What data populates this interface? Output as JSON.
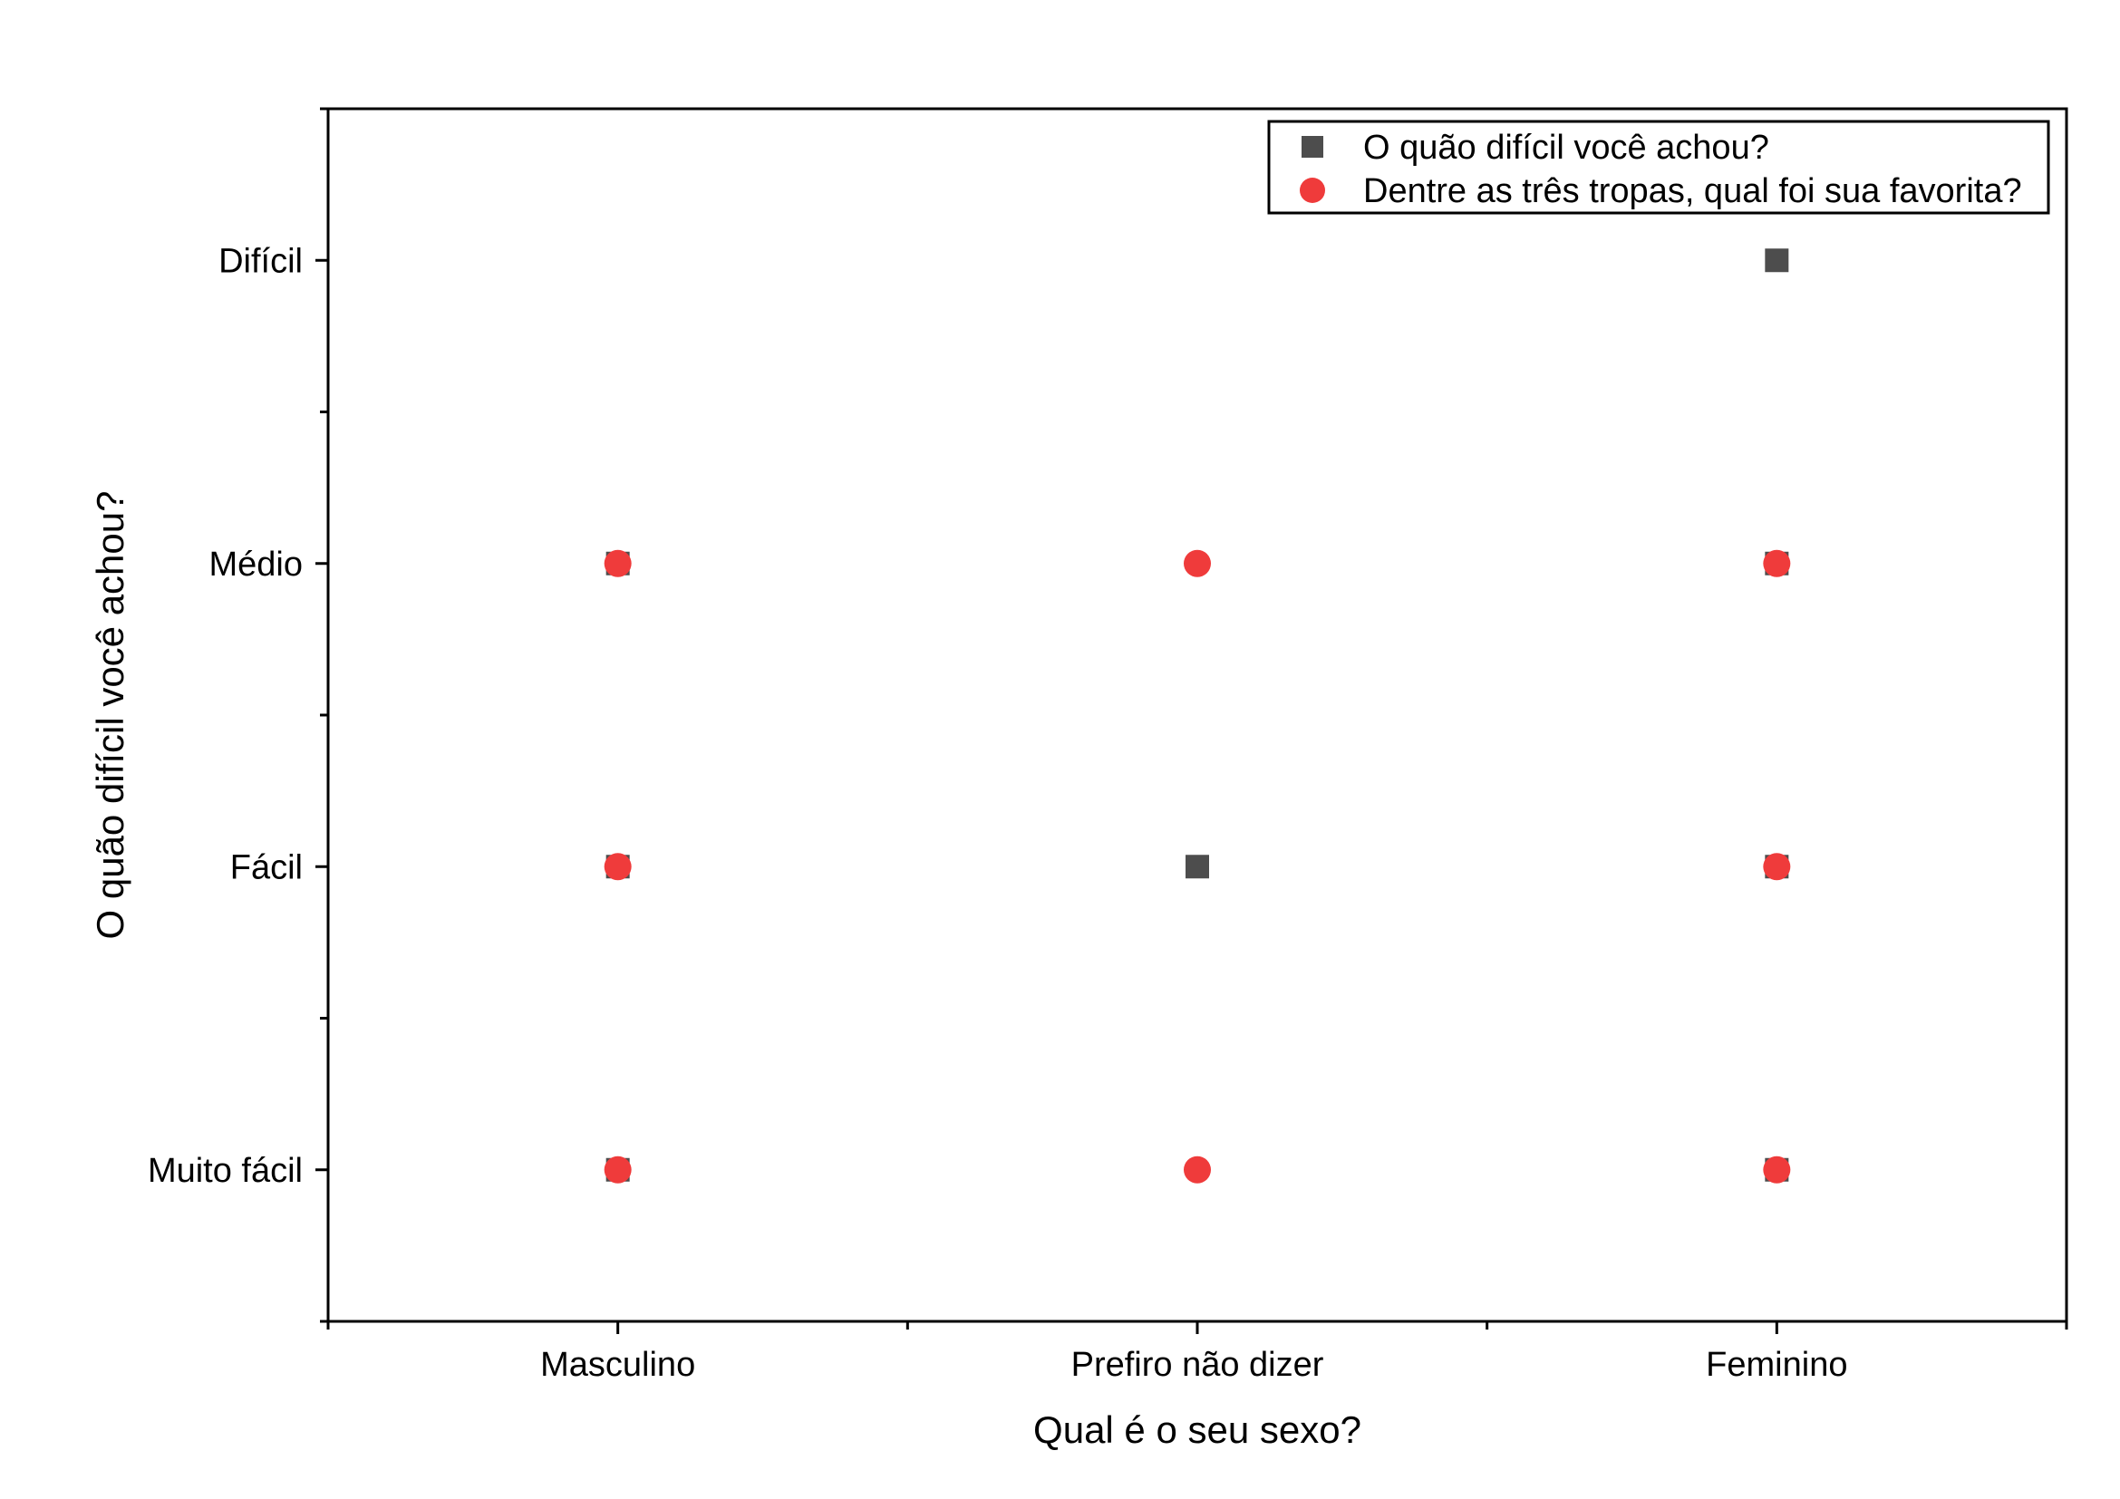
{
  "chart_data": {
    "type": "scatter",
    "title": "",
    "xlabel": "Qual é o seu sexo?",
    "ylabel": "O quão difícil você achou?",
    "categories": [
      "Masculino",
      "Prefiro não dizer",
      "Feminino"
    ],
    "y_categories": [
      "Muito fácil",
      "Fácil",
      "Médio",
      "Difícil"
    ],
    "grid": false,
    "legend_position": "top-right",
    "series": [
      {
        "name": "O quão difícil você achou?",
        "marker": "square",
        "color": "#4d4d4d",
        "points": [
          {
            "x": "Masculino",
            "y": "Muito fácil"
          },
          {
            "x": "Masculino",
            "y": "Fácil"
          },
          {
            "x": "Masculino",
            "y": "Médio"
          },
          {
            "x": "Prefiro não dizer",
            "y": "Fácil"
          },
          {
            "x": "Feminino",
            "y": "Muito fácil"
          },
          {
            "x": "Feminino",
            "y": "Fácil"
          },
          {
            "x": "Feminino",
            "y": "Médio"
          },
          {
            "x": "Feminino",
            "y": "Difícil"
          }
        ]
      },
      {
        "name": "Dentre as três tropas, qual foi sua favorita?",
        "marker": "circle",
        "color": "#ef3b3b",
        "points": [
          {
            "x": "Masculino",
            "y": "Muito fácil"
          },
          {
            "x": "Masculino",
            "y": "Fácil"
          },
          {
            "x": "Masculino",
            "y": "Médio"
          },
          {
            "x": "Prefiro não dizer",
            "y": "Muito fácil"
          },
          {
            "x": "Prefiro não dizer",
            "y": "Médio"
          },
          {
            "x": "Feminino",
            "y": "Muito fácil"
          },
          {
            "x": "Feminino",
            "y": "Fácil"
          },
          {
            "x": "Feminino",
            "y": "Médio"
          }
        ]
      }
    ]
  }
}
